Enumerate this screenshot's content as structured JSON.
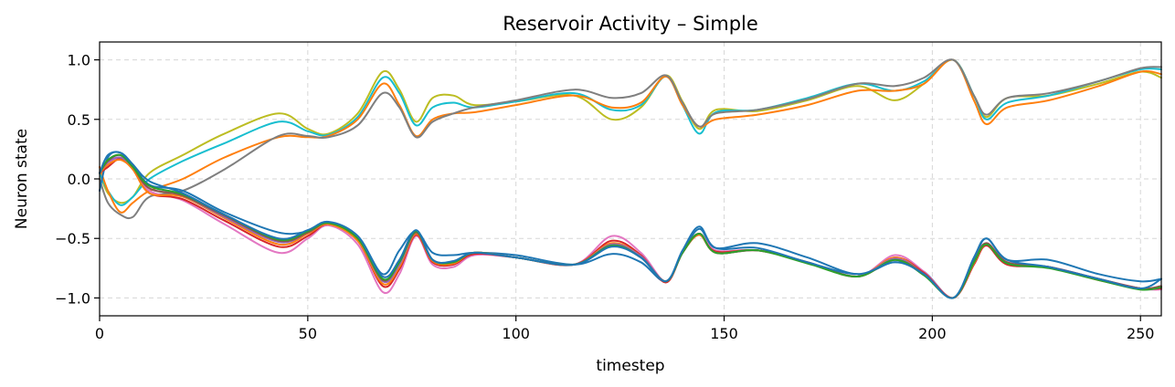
{
  "chart_data": {
    "type": "line",
    "title": "Reservoir Activity – Simple",
    "xlabel": "timestep",
    "ylabel": "Neuron state",
    "xlim": [
      0,
      255
    ],
    "ylim": [
      -1.15,
      1.15
    ],
    "x_ticks": [
      0,
      50,
      100,
      150,
      200,
      250
    ],
    "x_tick_labels": [
      "0",
      "50",
      "100",
      "150",
      "200",
      "250"
    ],
    "y_ticks": [
      1.0,
      0.5,
      0.0,
      -0.5,
      -1.0
    ],
    "y_tick_labels": [
      "1.0",
      "0.5",
      "0.0",
      "−0.5",
      "−1.0"
    ],
    "grid": true,
    "grid_style": "dashed",
    "x": [
      0,
      2,
      5,
      8,
      12,
      20,
      30,
      43,
      50,
      55,
      62,
      68,
      72,
      76,
      80,
      85,
      90,
      100,
      114,
      123,
      130,
      136,
      140,
      144,
      148,
      158,
      170,
      182,
      191,
      198,
      205,
      210,
      213,
      218,
      228,
      240,
      250,
      255
    ],
    "series": [
      {
        "color": "#bcbd22",
        "values": [
          0.05,
          -0.12,
          -0.2,
          -0.15,
          0.05,
          0.2,
          0.38,
          0.55,
          0.42,
          0.38,
          0.55,
          0.9,
          0.75,
          0.48,
          0.68,
          0.7,
          0.62,
          0.65,
          0.7,
          0.5,
          0.6,
          0.87,
          0.65,
          0.42,
          0.58,
          0.57,
          0.66,
          0.78,
          0.66,
          0.8,
          1.0,
          0.7,
          0.52,
          0.68,
          0.7,
          0.8,
          0.9,
          0.85
        ]
      },
      {
        "color": "#17becf",
        "values": [
          0.05,
          -0.1,
          -0.22,
          -0.15,
          0.0,
          0.15,
          0.3,
          0.48,
          0.4,
          0.37,
          0.52,
          0.85,
          0.72,
          0.45,
          0.6,
          0.64,
          0.6,
          0.65,
          0.72,
          0.58,
          0.62,
          0.86,
          0.62,
          0.38,
          0.56,
          0.58,
          0.68,
          0.8,
          0.74,
          0.82,
          1.0,
          0.7,
          0.5,
          0.64,
          0.7,
          0.82,
          0.92,
          0.92
        ]
      },
      {
        "color": "#ff7f0e",
        "values": [
          0.1,
          -0.1,
          -0.28,
          -0.2,
          -0.1,
          0.0,
          0.18,
          0.35,
          0.35,
          0.36,
          0.5,
          0.8,
          0.62,
          0.36,
          0.5,
          0.55,
          0.56,
          0.62,
          0.7,
          0.6,
          0.64,
          0.86,
          0.62,
          0.44,
          0.5,
          0.54,
          0.62,
          0.74,
          0.74,
          0.8,
          1.0,
          0.66,
          0.46,
          0.6,
          0.66,
          0.78,
          0.9,
          0.88
        ]
      },
      {
        "color": "#7f7f7f",
        "values": [
          0.0,
          -0.2,
          -0.3,
          -0.32,
          -0.15,
          -0.1,
          0.08,
          0.36,
          0.36,
          0.35,
          0.45,
          0.72,
          0.6,
          0.35,
          0.48,
          0.55,
          0.6,
          0.66,
          0.75,
          0.68,
          0.72,
          0.87,
          0.64,
          0.44,
          0.55,
          0.58,
          0.67,
          0.8,
          0.78,
          0.85,
          1.0,
          0.7,
          0.54,
          0.68,
          0.72,
          0.82,
          0.93,
          0.94
        ]
      },
      {
        "color": "#1f77b4",
        "values": [
          -0.1,
          0.18,
          0.22,
          0.12,
          -0.05,
          -0.1,
          -0.28,
          -0.45,
          -0.44,
          -0.38,
          -0.48,
          -0.8,
          -0.6,
          -0.44,
          -0.62,
          -0.64,
          -0.62,
          -0.64,
          -0.72,
          -0.63,
          -0.7,
          -0.86,
          -0.62,
          -0.42,
          -0.58,
          -0.54,
          -0.66,
          -0.8,
          -0.7,
          -0.78,
          -1.0,
          -0.68,
          -0.5,
          -0.68,
          -0.68,
          -0.8,
          -0.86,
          -0.84
        ]
      },
      {
        "color": "#e377c2",
        "values": [
          0.05,
          0.12,
          0.18,
          0.1,
          -0.1,
          -0.18,
          -0.38,
          -0.62,
          -0.5,
          -0.39,
          -0.55,
          -0.95,
          -0.8,
          -0.48,
          -0.72,
          -0.74,
          -0.64,
          -0.66,
          -0.72,
          -0.48,
          -0.62,
          -0.86,
          -0.62,
          -0.46,
          -0.6,
          -0.6,
          -0.7,
          -0.82,
          -0.64,
          -0.78,
          -1.0,
          -0.72,
          -0.56,
          -0.72,
          -0.74,
          -0.84,
          -0.92,
          -0.93
        ]
      },
      {
        "color": "#d62728",
        "values": [
          0.05,
          0.1,
          0.17,
          0.08,
          -0.12,
          -0.17,
          -0.35,
          -0.57,
          -0.48,
          -0.38,
          -0.52,
          -0.9,
          -0.76,
          -0.47,
          -0.7,
          -0.72,
          -0.63,
          -0.66,
          -0.72,
          -0.52,
          -0.64,
          -0.87,
          -0.62,
          -0.47,
          -0.61,
          -0.6,
          -0.7,
          -0.82,
          -0.66,
          -0.79,
          -1.0,
          -0.72,
          -0.56,
          -0.72,
          -0.74,
          -0.85,
          -0.92,
          -0.92
        ]
      },
      {
        "color": "#ff7f0e",
        "values": [
          0.05,
          0.12,
          0.16,
          0.08,
          -0.12,
          -0.15,
          -0.33,
          -0.55,
          -0.46,
          -0.38,
          -0.52,
          -0.88,
          -0.74,
          -0.46,
          -0.69,
          -0.71,
          -0.62,
          -0.66,
          -0.72,
          -0.54,
          -0.65,
          -0.86,
          -0.62,
          -0.47,
          -0.62,
          -0.6,
          -0.7,
          -0.82,
          -0.66,
          -0.8,
          -1.0,
          -0.71,
          -0.55,
          -0.71,
          -0.74,
          -0.85,
          -0.92,
          -0.91
        ]
      },
      {
        "color": "#9467bd",
        "values": [
          0.05,
          0.14,
          0.18,
          0.1,
          -0.08,
          -0.14,
          -0.32,
          -0.53,
          -0.45,
          -0.37,
          -0.5,
          -0.86,
          -0.72,
          -0.45,
          -0.68,
          -0.7,
          -0.62,
          -0.66,
          -0.72,
          -0.55,
          -0.65,
          -0.86,
          -0.62,
          -0.46,
          -0.62,
          -0.6,
          -0.7,
          -0.82,
          -0.67,
          -0.8,
          -1.0,
          -0.7,
          -0.54,
          -0.7,
          -0.74,
          -0.84,
          -0.92,
          -0.91
        ]
      },
      {
        "color": "#8c564b",
        "values": [
          0.05,
          0.15,
          0.2,
          0.1,
          -0.08,
          -0.14,
          -0.31,
          -0.52,
          -0.45,
          -0.37,
          -0.5,
          -0.85,
          -0.7,
          -0.45,
          -0.68,
          -0.7,
          -0.62,
          -0.66,
          -0.72,
          -0.56,
          -0.66,
          -0.86,
          -0.62,
          -0.46,
          -0.62,
          -0.6,
          -0.7,
          -0.82,
          -0.68,
          -0.8,
          -1.0,
          -0.7,
          -0.54,
          -0.7,
          -0.74,
          -0.84,
          -0.92,
          -0.9
        ]
      },
      {
        "color": "#2ca02c",
        "values": [
          0.05,
          0.16,
          0.2,
          0.1,
          -0.06,
          -0.13,
          -0.3,
          -0.51,
          -0.44,
          -0.37,
          -0.5,
          -0.84,
          -0.7,
          -0.44,
          -0.68,
          -0.7,
          -0.62,
          -0.66,
          -0.72,
          -0.56,
          -0.66,
          -0.86,
          -0.62,
          -0.46,
          -0.62,
          -0.6,
          -0.71,
          -0.82,
          -0.68,
          -0.81,
          -1.0,
          -0.7,
          -0.55,
          -0.71,
          -0.75,
          -0.85,
          -0.93,
          -0.91
        ]
      },
      {
        "color": "#1f77b4",
        "values": [
          0.05,
          0.2,
          0.22,
          0.12,
          -0.02,
          -0.12,
          -0.3,
          -0.5,
          -0.43,
          -0.36,
          -0.48,
          -0.82,
          -0.68,
          -0.43,
          -0.68,
          -0.69,
          -0.62,
          -0.66,
          -0.72,
          -0.57,
          -0.66,
          -0.86,
          -0.6,
          -0.4,
          -0.58,
          -0.58,
          -0.7,
          -0.8,
          -0.7,
          -0.8,
          -1.0,
          -0.66,
          -0.5,
          -0.68,
          -0.74,
          -0.84,
          -0.92,
          -0.84
        ]
      }
    ]
  }
}
